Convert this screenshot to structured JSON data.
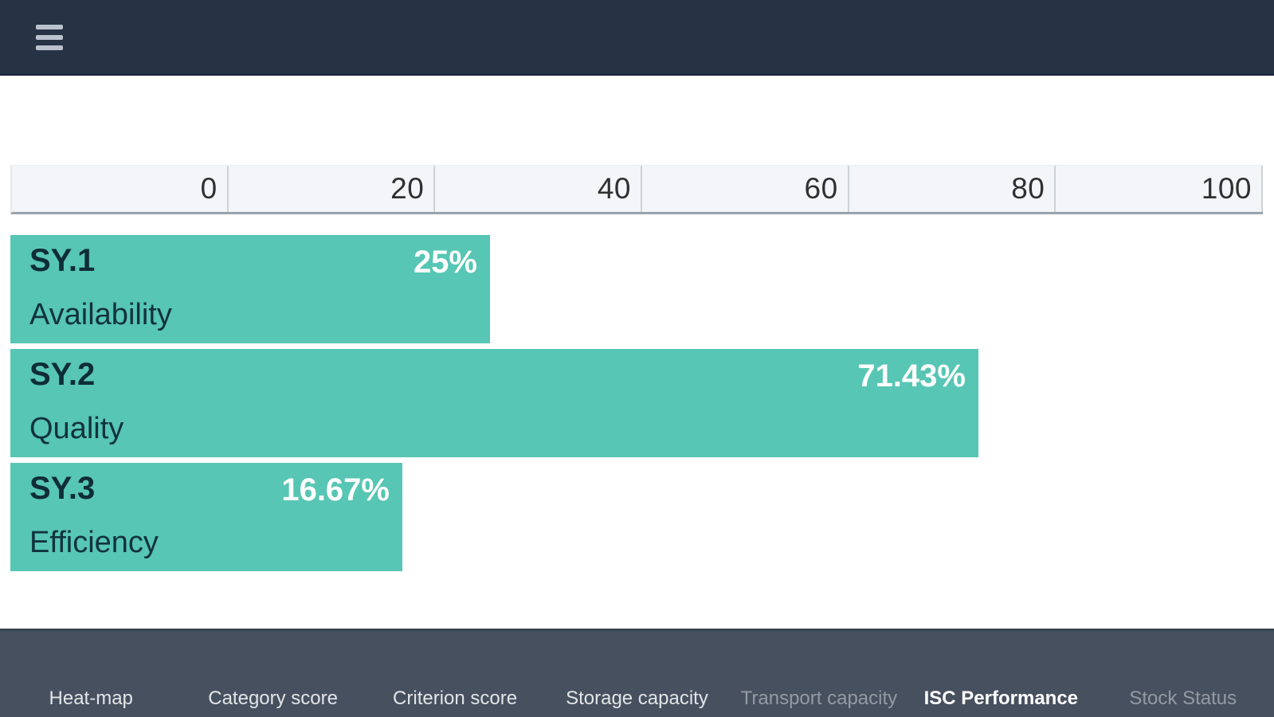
{
  "header": {
    "menu_icon": "hamburger-menu-icon"
  },
  "chart_data": {
    "type": "bar",
    "orientation": "horizontal",
    "title": "",
    "xlabel": "",
    "ylabel": "",
    "axis": {
      "position": "top",
      "min": 0,
      "max": 100,
      "tick_labels": [
        "0",
        "20",
        "40",
        "60",
        "80",
        "100"
      ]
    },
    "grid": true,
    "legend": false,
    "bar_color": "#57c6b4",
    "categories": [
      "SY.1 Availability",
      "SY.2 Quality",
      "SY.3 Efficiency"
    ],
    "values": [
      25,
      71.43,
      16.67
    ],
    "bars": [
      {
        "code": "SY.1",
        "label": "Availability",
        "value": 25,
        "value_label": "25%"
      },
      {
        "code": "SY.2",
        "label": "Quality",
        "value": 71.43,
        "value_label": "71.43%"
      },
      {
        "code": "SY.3",
        "label": "Efficiency",
        "value": 16.67,
        "value_label": "16.67%"
      }
    ]
  },
  "footer": {
    "tabs": [
      {
        "label": "Heat-map",
        "state": "normal"
      },
      {
        "label": "Category score",
        "state": "normal"
      },
      {
        "label": "Criterion score",
        "state": "normal"
      },
      {
        "label": "Storage capacity",
        "state": "normal"
      },
      {
        "label": "Transport capacity",
        "state": "dimmed"
      },
      {
        "label": "ISC Performance",
        "state": "active"
      },
      {
        "label": "Stock Status",
        "state": "dimmed"
      }
    ]
  },
  "colors": {
    "header_bg": "#273345",
    "footer_bg": "#46505f",
    "bar_fill": "#57c6b4",
    "bar_text_dark": "#0e2d36",
    "bar_value_text": "#ffffff",
    "scale_bg": "#f3f5f8",
    "scale_border": "#9aa2ab",
    "scale_text": "#303030"
  }
}
